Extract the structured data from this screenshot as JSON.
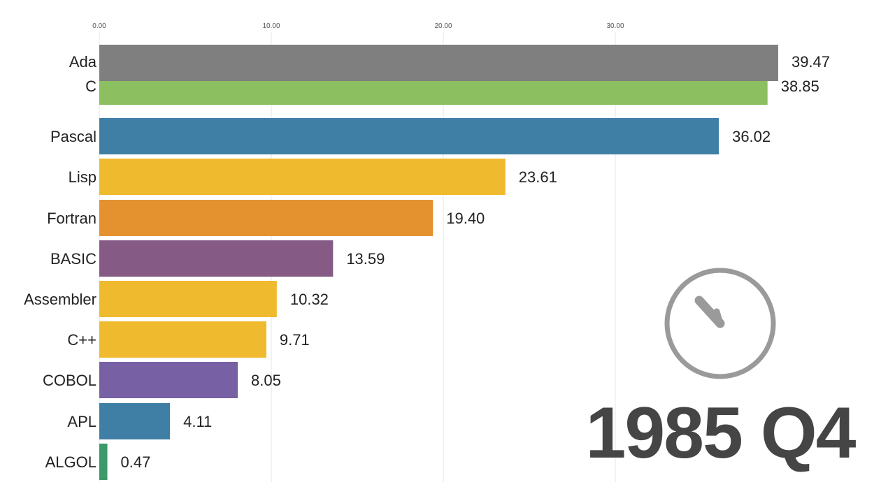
{
  "chart_data": {
    "type": "bar",
    "orientation": "horizontal",
    "period": "1985 Q4",
    "x_ticks": [
      "0.00",
      "10.00",
      "20.00",
      "30.00"
    ],
    "xlim": [
      0,
      40
    ],
    "grid": true,
    "categories": [
      "Ada",
      "C",
      "Pascal",
      "Lisp",
      "Fortran",
      "BASIC",
      "Assembler",
      "C++",
      "COBOL",
      "APL",
      "ALGOL"
    ],
    "values": [
      39.47,
      38.85,
      36.02,
      23.61,
      19.4,
      13.59,
      10.32,
      9.71,
      8.05,
      4.11,
      0.47
    ],
    "value_labels": [
      "39.47",
      "38.85",
      "36.02",
      "23.61",
      "19.40",
      "13.59",
      "10.32",
      "9.71",
      "8.05",
      "4.11",
      "0.47"
    ],
    "colors": [
      "#7f7f7f",
      "#8cbf5f",
      "#3f7fa6",
      "#f0ba2f",
      "#e49130",
      "#855a84",
      "#f0ba2f",
      "#f0ba2f",
      "#7760a3",
      "#3f7fa6",
      "#3c9a6a"
    ]
  },
  "clock_icon": "clock-icon"
}
